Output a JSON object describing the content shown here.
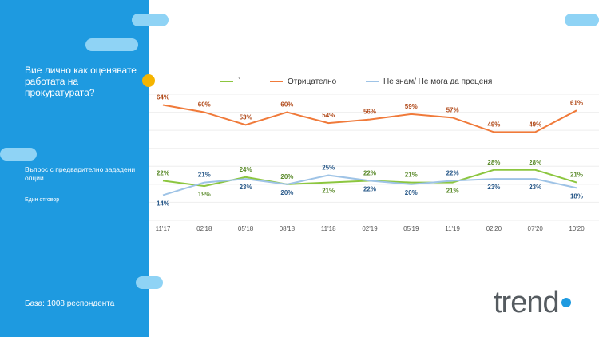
{
  "sidebar": {
    "question": "Вие лично как оценявате работата на прокуратурата?",
    "subtitle": "Въпрос с предварително зададени опции",
    "answer_type": "Един отговор",
    "base": "База: 1008 респондента"
  },
  "logo": {
    "text": "trend"
  },
  "colors": {
    "sidebar": "#1e9ae0",
    "positive": "#8cc63f",
    "negative": "#f07a3a",
    "dont_know": "#9ec3e6"
  },
  "chart_data": {
    "type": "line",
    "x": [
      "11'17",
      "02'18",
      "05'18",
      "08'18",
      "11'18",
      "02'19",
      "05'19",
      "11'19",
      "02'20",
      "07'20",
      "10'20"
    ],
    "series": [
      {
        "name": "`",
        "color": "#8cc63f",
        "values": [
          22,
          19,
          24,
          20,
          21,
          22,
          21,
          21,
          28,
          28,
          21
        ]
      },
      {
        "name": "Отрицателно",
        "color": "#f07a3a",
        "values": [
          64,
          60,
          53,
          60,
          54,
          56,
          59,
          57,
          49,
          49,
          61
        ]
      },
      {
        "name": "Не знам/ Не мога да преценя",
        "color": "#9ec3e6",
        "values": [
          14,
          21,
          23,
          20,
          25,
          22,
          20,
          22,
          23,
          23,
          18
        ]
      }
    ],
    "value_suffix": "%",
    "ylim": [
      0,
      70
    ],
    "grid": true,
    "legend": "top"
  }
}
